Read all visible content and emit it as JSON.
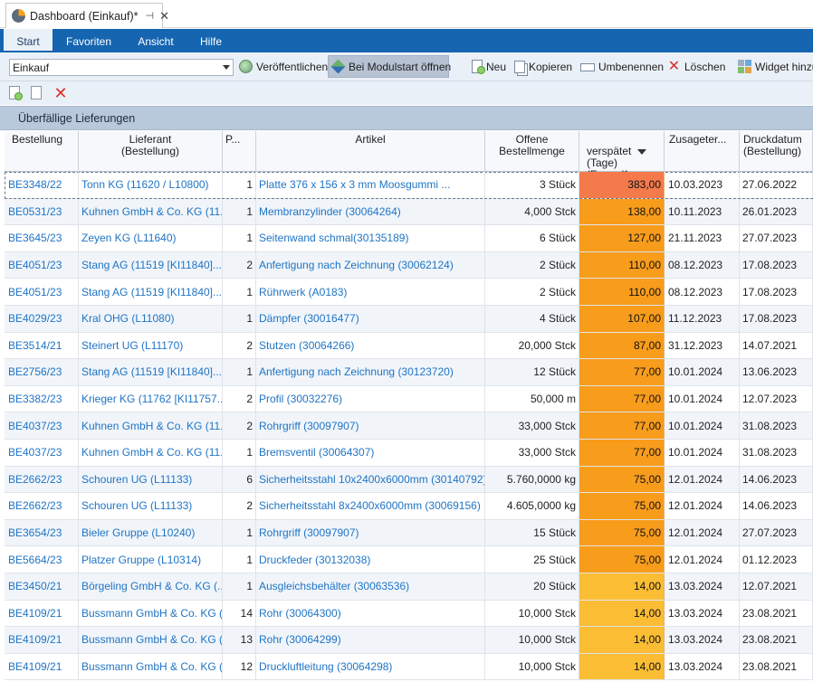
{
  "window": {
    "tab_title": "Dashboard (Einkauf)*",
    "pin_glyph": "⊣",
    "close_glyph": "✕"
  },
  "ribbon": {
    "tabs": [
      {
        "label": "Start",
        "active": true
      },
      {
        "label": "Favoriten",
        "active": false
      },
      {
        "label": "Ansicht",
        "active": false
      },
      {
        "label": "Hilfe",
        "active": false
      }
    ]
  },
  "toolbar": {
    "dashboard_select": "Einkauf",
    "publish": "Veröffentlichen",
    "open_on_start": "Bei Modulstart öffnen",
    "new": "Neu",
    "copy": "Kopieren",
    "rename": "Umbenennen",
    "delete": "Löschen",
    "add_widget": "Widget hinzu"
  },
  "section": {
    "title": "Überfällige Lieferungen"
  },
  "colors": {
    "accent": "#1565b0",
    "late_high": "#f47a4c",
    "late_mid": "#f89c1c",
    "late_low": "#fbbd34"
  },
  "grid": {
    "columns": {
      "bestellung": "Bestellung",
      "lieferant": "Lieferant\n(Bestellung)",
      "pos": "P...",
      "artikel": "Artikel",
      "offen": "Offene\nBestellmenge",
      "verspaetet": "verspätet\n(Tage)\n(Formelf...",
      "zusage": "Zusageter...",
      "druck": "Druckdatum\n(Bestellung)"
    },
    "rows": [
      {
        "bestellung": "BE3348/22",
        "lieferant": "Tonn KG (11620 / L10800)",
        "pos": "1",
        "artikel": "Platte 376 x 156 x 3 mm Moosgummi ...",
        "offen": "3 Stück",
        "verspaetet": "383,00",
        "zusage": "10.03.2023",
        "druck": "27.06.2022",
        "level": "high"
      },
      {
        "bestellung": "BE0531/23",
        "lieferant": "Kuhnen GmbH & Co. KG (11...",
        "pos": "1",
        "artikel": "Membranzylinder (30064264)",
        "offen": "4,000 Stck",
        "verspaetet": "138,00",
        "zusage": "10.11.2023",
        "druck": "26.01.2023",
        "level": "mid"
      },
      {
        "bestellung": "BE3645/23",
        "lieferant": "Zeyen KG (L11640)",
        "pos": "1",
        "artikel": " Seitenwand schmal(30135189)",
        "offen": "6 Stück",
        "verspaetet": "127,00",
        "zusage": "21.11.2023",
        "druck": "27.07.2023",
        "level": "mid"
      },
      {
        "bestellung": "BE4051/23",
        "lieferant": "Stang AG (11519 [KI11840]...",
        "pos": "2",
        "artikel": "Anfertigung nach Zeichnung (30062124)",
        "offen": "2 Stück",
        "verspaetet": "110,00",
        "zusage": "08.12.2023",
        "druck": "17.08.2023",
        "level": "mid"
      },
      {
        "bestellung": "BE4051/23",
        "lieferant": "Stang AG (11519 [KI11840]...",
        "pos": "1",
        "artikel": " Rührwerk (A0183)",
        "offen": "2 Stück",
        "verspaetet": "110,00",
        "zusage": "08.12.2023",
        "druck": "17.08.2023",
        "level": "mid"
      },
      {
        "bestellung": "BE4029/23",
        "lieferant": "Kral OHG (L11080)",
        "pos": "1",
        "artikel": "Dämpfer (30016477)",
        "offen": "4 Stück",
        "verspaetet": "107,00",
        "zusage": "11.12.2023",
        "druck": "17.08.2023",
        "level": "mid"
      },
      {
        "bestellung": "BE3514/21",
        "lieferant": "Steinert UG (L11170)",
        "pos": "2",
        "artikel": "Stutzen (30064266)",
        "offen": "20,000 Stck",
        "verspaetet": "87,00",
        "zusage": "31.12.2023",
        "druck": "14.07.2021",
        "level": "mid"
      },
      {
        "bestellung": "BE2756/23",
        "lieferant": "Stang AG (11519 [KI11840]...",
        "pos": "1",
        "artikel": "Anfertigung nach Zeichnung (30123720)",
        "offen": "12 Stück",
        "verspaetet": "77,00",
        "zusage": "10.01.2024",
        "druck": "13.06.2023",
        "level": "mid"
      },
      {
        "bestellung": "BE3382/23",
        "lieferant": "Krieger KG (11762 [KI11757...",
        "pos": "2",
        "artikel": "Profil (30032276)",
        "offen": "50,000 m",
        "verspaetet": "77,00",
        "zusage": "10.01.2024",
        "druck": "12.07.2023",
        "level": "mid"
      },
      {
        "bestellung": "BE4037/23",
        "lieferant": "Kuhnen GmbH & Co. KG (11...",
        "pos": "2",
        "artikel": "Rohrgriff (30097907)",
        "offen": "33,000 Stck",
        "verspaetet": "77,00",
        "zusage": "10.01.2024",
        "druck": "31.08.2023",
        "level": "mid"
      },
      {
        "bestellung": "BE4037/23",
        "lieferant": "Kuhnen GmbH & Co. KG (11...",
        "pos": "1",
        "artikel": "Bremsventil (30064307)",
        "offen": "33,000 Stck",
        "verspaetet": "77,00",
        "zusage": "10.01.2024",
        "druck": "31.08.2023",
        "level": "mid"
      },
      {
        "bestellung": "BE2662/23",
        "lieferant": "Schouren UG (L11133)",
        "pos": "6",
        "artikel": "Sicherheitsstahl 10x2400x6000mm (30140792)",
        "offen": "5.760,0000 kg",
        "verspaetet": "75,00",
        "zusage": "12.01.2024",
        "druck": "14.06.2023",
        "level": "mid"
      },
      {
        "bestellung": "BE2662/23",
        "lieferant": "Schouren UG (L11133)",
        "pos": "2",
        "artikel": "Sicherheitsstahl 8x2400x6000mm (30069156)",
        "offen": "4.605,0000 kg",
        "verspaetet": "75,00",
        "zusage": "12.01.2024",
        "druck": "14.06.2023",
        "level": "mid"
      },
      {
        "bestellung": "BE3654/23",
        "lieferant": "Bieler Gruppe (L10240)",
        "pos": "1",
        "artikel": "Rohrgriff (30097907)",
        "offen": "15 Stück",
        "verspaetet": "75,00",
        "zusage": "12.01.2024",
        "druck": "27.07.2023",
        "level": "mid"
      },
      {
        "bestellung": "BE5664/23",
        "lieferant": "Platzer Gruppe (L10314)",
        "pos": "1",
        "artikel": "Druckfeder (30132038)",
        "offen": "25 Stück",
        "verspaetet": "75,00",
        "zusage": "12.01.2024",
        "druck": "01.12.2023",
        "level": "mid"
      },
      {
        "bestellung": "BE3450/21",
        "lieferant": "Börgeling GmbH & Co. KG (...",
        "pos": "1",
        "artikel": "Ausgleichsbehälter (30063536)",
        "offen": "20 Stück",
        "verspaetet": "14,00",
        "zusage": "13.03.2024",
        "druck": "12.07.2021",
        "level": "low"
      },
      {
        "bestellung": "BE4109/21",
        "lieferant": "Bussmann GmbH & Co. KG (...",
        "pos": "14",
        "artikel": "Rohr (30064300)",
        "offen": "10,000 Stck",
        "verspaetet": "14,00",
        "zusage": "13.03.2024",
        "druck": "23.08.2021",
        "level": "low"
      },
      {
        "bestellung": "BE4109/21",
        "lieferant": "Bussmann GmbH & Co. KG (...",
        "pos": "13",
        "artikel": "Rohr (30064299)",
        "offen": "10,000 Stck",
        "verspaetet": "14,00",
        "zusage": "13.03.2024",
        "druck": "23.08.2021",
        "level": "low"
      },
      {
        "bestellung": "BE4109/21",
        "lieferant": "Bussmann GmbH & Co. KG (...",
        "pos": "12",
        "artikel": "Druckluftleitung (30064298)",
        "offen": "10,000 Stck",
        "verspaetet": "14,00",
        "zusage": "13.03.2024",
        "druck": "23.08.2021",
        "level": "low"
      }
    ]
  }
}
